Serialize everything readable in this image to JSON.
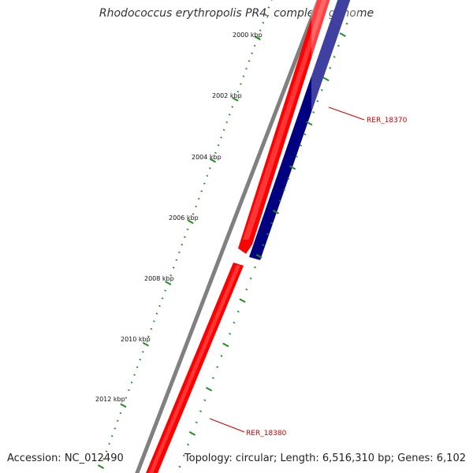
{
  "title": "Rhodococcus erythropolis PR4, complete genome",
  "footer": {
    "accession": "Accession: NC_012490",
    "summary": "Topology: circular; Length: 6,516,310 bp; Genes: 6,102"
  },
  "scale": {
    "unit": "kbp",
    "labels": [
      "2000 kbp",
      "2002 kbp",
      "2004 kbp",
      "2006 kbp",
      "2008 kbp",
      "2010 kbp",
      "2012 kbp"
    ]
  },
  "genes": [
    {
      "id": "RER_18370",
      "label": "RER_18370",
      "strand": "reverse"
    },
    {
      "id": "RER_18380",
      "label": "RER_18380",
      "strand": "forward"
    }
  ],
  "colors": {
    "backbone": "#808080",
    "forward": "#ff0000",
    "reverse": "#000080",
    "ticks": "#228b22",
    "label": "#cc0000"
  }
}
